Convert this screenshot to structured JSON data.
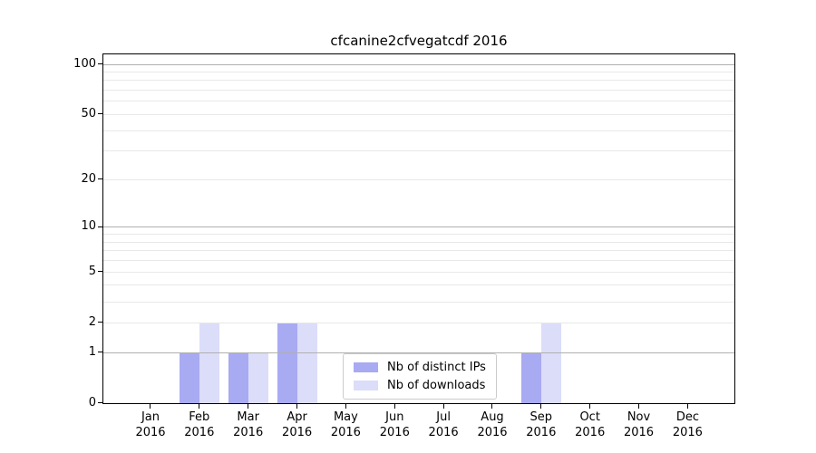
{
  "title": "cfcanine2cfvegatcdf 2016",
  "chart_data": {
    "type": "bar",
    "title": "cfcanine2cfvegatcdf 2016",
    "xlabel": "",
    "ylabel": "",
    "categories": [
      "Jan",
      "Feb",
      "Mar",
      "Apr",
      "May",
      "Jun",
      "Jul",
      "Aug",
      "Sep",
      "Oct",
      "Nov",
      "Dec"
    ],
    "x_tick_line2": "2016",
    "series": [
      {
        "name": "Nb of distinct IPs",
        "color": "#a8aaf2",
        "values": [
          0,
          1,
          1,
          2,
          0,
          0,
          0,
          0,
          1,
          0,
          0,
          0
        ]
      },
      {
        "name": "Nb of downloads",
        "color": "#dbddf9",
        "values": [
          0,
          2,
          1,
          2,
          0,
          0,
          0,
          0,
          2,
          0,
          0,
          0
        ]
      }
    ],
    "y_axis": {
      "scale": "log1p",
      "ylim": [
        0,
        114
      ],
      "ymax": 114,
      "labeled_ticks": [
        0,
        1,
        2,
        5,
        10,
        20,
        50,
        100
      ],
      "major_grid": [
        1,
        10,
        100
      ],
      "minor_grid": [
        2,
        3,
        4,
        5,
        6,
        7,
        8,
        9,
        20,
        30,
        40,
        50,
        60,
        70,
        80,
        90
      ]
    },
    "legend": {
      "position": "lower-center",
      "entries": [
        "Nb of distinct IPs",
        "Nb of downloads"
      ]
    },
    "grid": true,
    "colors": {
      "major_grid": "#b0b0b0",
      "minor_grid": "#e8e8e8",
      "spine": "#000000",
      "text": "#000000",
      "background": "#ffffff"
    }
  }
}
